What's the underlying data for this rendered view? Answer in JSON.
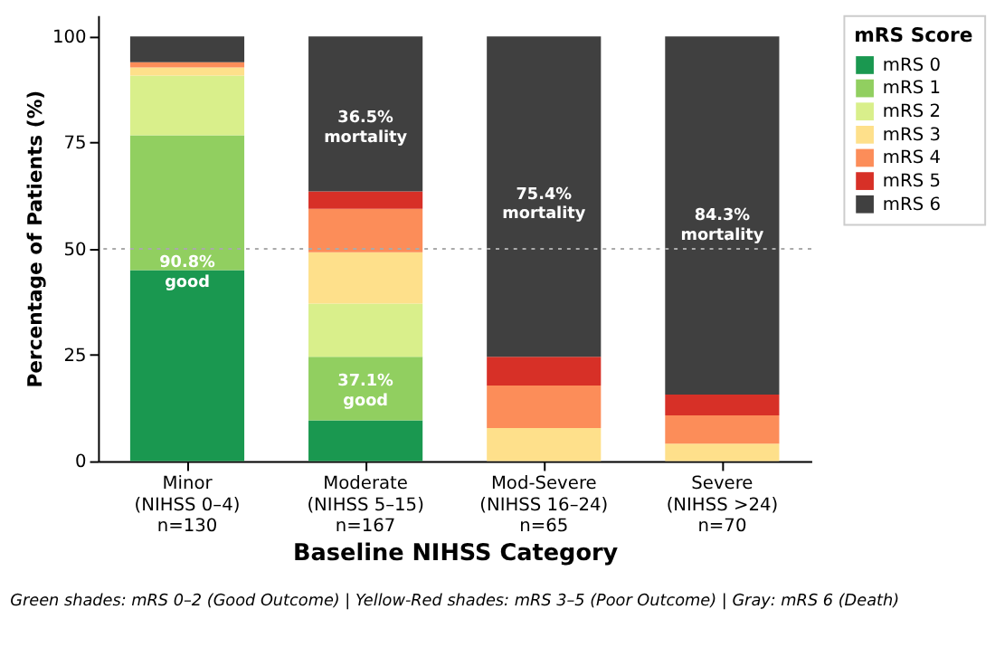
{
  "chart_data": {
    "type": "bar",
    "stacked": true,
    "xlabel": "Baseline NIHSS Category",
    "ylabel": "Percentage of Patients (%)",
    "legend_title": "mRS Score",
    "legend": "right",
    "grid": false,
    "categories": [
      "Minor\n(NIHSS 0–4)\nn=130",
      "Moderate\n(NIHSS 5–15)\nn=167",
      "Mod-Severe\n(NIHSS 16–24)\nn=65",
      "Severe\n(NIHSS >24)\nn=70"
    ],
    "ylim": [
      0,
      105
    ],
    "yticks": [
      0,
      25,
      50,
      75,
      100
    ],
    "series": [
      {
        "name": "mRS 0",
        "color": "#1a9850",
        "values": [
          45.0,
          9.6,
          0,
          0
        ]
      },
      {
        "name": "mRS 1",
        "color": "#91cf60",
        "values": [
          31.7,
          15.0,
          0,
          0
        ]
      },
      {
        "name": "mRS 2",
        "color": "#d9ef8b",
        "values": [
          14.1,
          12.5,
          0,
          0
        ]
      },
      {
        "name": "mRS 3",
        "color": "#fee08b",
        "values": [
          1.9,
          12.1,
          7.8,
          4.1
        ]
      },
      {
        "name": "mRS 4",
        "color": "#fc8d59",
        "values": [
          1.2,
          10.2,
          10.0,
          6.7
        ]
      },
      {
        "name": "mRS 5",
        "color": "#d73027",
        "values": [
          0,
          4.1,
          6.8,
          4.9
        ]
      },
      {
        "name": "mRS 6",
        "color": "#404040",
        "values": [
          6.1,
          36.5,
          75.4,
          84.3
        ]
      }
    ],
    "ref_lines": [
      {
        "axis": "y",
        "value": 50,
        "label": null,
        "color": "#aaaaaa",
        "line_style": "dotted"
      }
    ],
    "annotations": [
      "90.8%\ngood",
      "37.1%\ngood",
      "36.5%\nmortality",
      "75.4%\nmortality",
      "84.3%\nmortality",
      "Green shades: mRS 0–2 (Good Outcome) | Yellow-Red shades: mRS 3–5 (Poor Outcome) | Gray: mRS 6 (Death)"
    ]
  }
}
